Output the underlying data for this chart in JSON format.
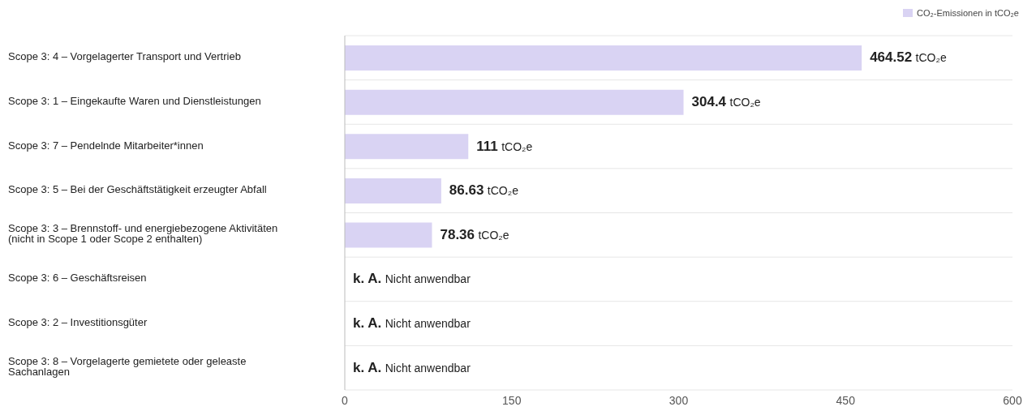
{
  "chart_data": {
    "type": "bar",
    "orientation": "horizontal",
    "categories": [
      "Scope 3: 4 – Vorgelagerter Transport und Vertrieb",
      "Scope 3: 1 – Eingekaufte Waren und Dienstleistungen",
      "Scope 3: 7 – Pendelnde Mitarbeiter*innen",
      "Scope 3: 5 – Bei der Geschäftstätigkeit erzeugter Abfall",
      "Scope 3: 3 – Brennstoff- und energiebezogene Aktivitäten (nicht in Scope 1 oder Scope 2 enthalten)",
      "Scope 3: 6 – Geschäftsreisen",
      "Scope 3: 2 – Investitionsgüter",
      "Scope 3: 8 – Vorgelagerte gemietete oder geleaste Sachanlagen"
    ],
    "series": [
      {
        "name": "CO₂-Emissionen in tCO₂e",
        "color": "#d9d3f3",
        "values": [
          464.52,
          304.4,
          111,
          86.63,
          78.36,
          null,
          null,
          null
        ],
        "value_labels": [
          "464.52 tCO₂e",
          "304.4 tCO₂e",
          "111 tCO₂e",
          "86.63 tCO₂e",
          "78.36 tCO₂e",
          "k. A. Nicht anwendbar",
          "k. A. Nicht anwendbar",
          "k. A. Nicht anwendbar"
        ]
      }
    ],
    "xlim": [
      0,
      600
    ],
    "xticks": [
      0,
      150,
      300,
      450,
      600
    ],
    "grid": "y",
    "legend": "top right"
  }
}
